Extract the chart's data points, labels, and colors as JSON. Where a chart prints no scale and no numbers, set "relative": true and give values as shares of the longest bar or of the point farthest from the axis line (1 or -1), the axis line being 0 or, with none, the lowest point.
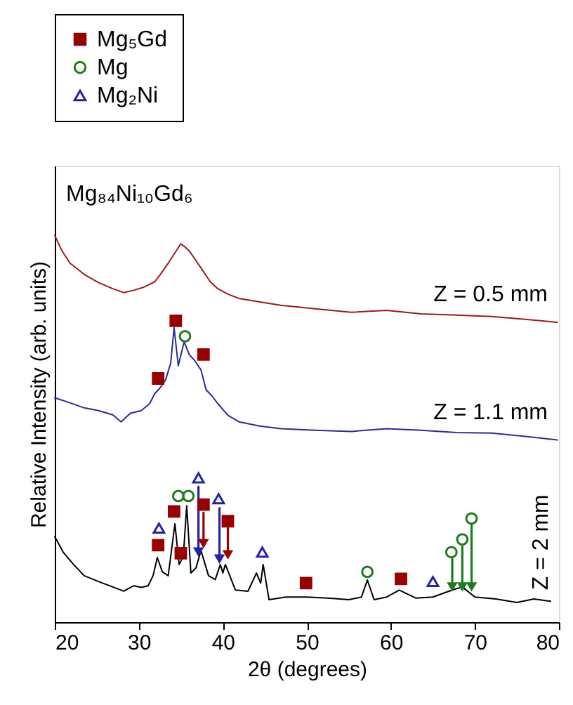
{
  "chart_data": {
    "type": "line",
    "relative": true,
    "xlabel": "2θ (degrees)",
    "ylabel": "Relative Intensity (arb. units)",
    "xlim": [
      20,
      80
    ],
    "xticks": [
      20,
      30,
      40,
      50,
      60,
      70,
      80
    ],
    "grid": false,
    "legend": "top left",
    "annotations": [
      "Mg₈₄Ni₁₀Gd₆"
    ],
    "series": [
      {
        "name": "Z = 0.5 mm",
        "color": "#9b1b1b",
        "x": [
          20,
          20.8,
          21.8,
          22.6,
          23.5,
          25.2,
          26.9,
          28.2,
          29.4,
          30.6,
          31.9,
          32.7,
          33.5,
          34.3,
          35,
          35.5,
          36,
          36.8,
          37.7,
          38.5,
          39.4,
          40.6,
          41.9,
          44.4,
          46.9,
          51,
          55.3,
          59.5,
          63.6,
          67.8,
          72,
          76,
          79.8
        ],
        "values": [
          1.0,
          0.962,
          0.928,
          0.915,
          0.899,
          0.878,
          0.862,
          0.852,
          0.858,
          0.866,
          0.88,
          0.903,
          0.928,
          0.955,
          0.978,
          0.97,
          0.96,
          0.935,
          0.906,
          0.88,
          0.862,
          0.848,
          0.837,
          0.828,
          0.819,
          0.81,
          0.801,
          0.806,
          0.797,
          0.794,
          0.79,
          0.783,
          0.775
        ]
      },
      {
        "name": "Z = 1.1 mm",
        "color": "#2b2b9b",
        "x": [
          20,
          21.8,
          23.5,
          25.2,
          26.9,
          27.9,
          29,
          30.3,
          31.3,
          31.9,
          32.5,
          33.2,
          33.8,
          34.2,
          34.7,
          35.4,
          36,
          36.7,
          37.4,
          38,
          38.7,
          39.4,
          40.6,
          41.9,
          44.4,
          46.9,
          51,
          55.3,
          59.5,
          63.6,
          67.8,
          72,
          76,
          79.8
        ],
        "values": [
          0.58,
          0.567,
          0.554,
          0.547,
          0.536,
          0.518,
          0.54,
          0.547,
          0.565,
          0.591,
          0.605,
          0.627,
          0.67,
          0.761,
          0.663,
          0.725,
          0.692,
          0.675,
          0.652,
          0.601,
          0.585,
          0.565,
          0.535,
          0.518,
          0.507,
          0.5,
          0.496,
          0.493,
          0.5,
          0.496,
          0.49,
          0.489,
          0.48,
          0.471
        ]
      },
      {
        "name": "Z = 2 mm",
        "color": "#000000",
        "x": [
          20,
          21,
          22.2,
          23.5,
          25.2,
          26.9,
          28.2,
          29.4,
          30.3,
          31.1,
          31.7,
          32.2,
          32.8,
          33.5,
          34.3,
          34.8,
          35.3,
          35.7,
          36.2,
          36.8,
          37.4,
          38.3,
          39.1,
          39.7,
          40,
          40.3,
          41.5,
          43,
          44,
          44.5,
          44.8,
          45.5,
          47.5,
          50,
          52.5,
          55,
          56.5,
          57.2,
          58,
          59.5,
          61,
          63,
          65,
          67.3,
          68.5,
          70,
          72.5,
          75,
          77,
          79
        ],
        "values": [
          0.221,
          0.181,
          0.15,
          0.12,
          0.105,
          0.091,
          0.08,
          0.094,
          0.09,
          0.094,
          0.12,
          0.167,
          0.13,
          0.12,
          0.254,
          0.149,
          0.17,
          0.301,
          0.127,
          0.14,
          0.185,
          0.12,
          0.11,
          0.149,
          0.127,
          0.149,
          0.083,
          0.08,
          0.127,
          0.101,
          0.149,
          0.058,
          0.065,
          0.065,
          0.062,
          0.058,
          0.065,
          0.109,
          0.058,
          0.065,
          0.083,
          0.062,
          0.065,
          0.083,
          0.091,
          0.065,
          0.06,
          0.051,
          0.06,
          0.054
        ]
      },
      {
        "name": "Mg₅Gd",
        "type": "scatter",
        "marker": "square",
        "color": "#990000",
        "x": [
          32.3,
          34.4,
          37.7,
          32.3,
          34.2,
          35.0,
          37.7,
          40.6,
          49.9,
          61.2
        ],
        "values": [
          0.63,
          0.779,
          0.692,
          0.199,
          0.286,
          0.178,
          0.304,
          0.261,
          0.101,
          0.112
        ]
      },
      {
        "name": "Mg",
        "type": "scatter",
        "marker": "circle",
        "color": "#1e7b1e",
        "x": [
          35.5,
          34.7,
          35.9,
          57.2,
          67.2,
          68.5,
          69.6
        ],
        "values": [
          0.739,
          0.326,
          0.326,
          0.13,
          0.181,
          0.214,
          0.268
        ]
      },
      {
        "name": "Mg₂Ni",
        "type": "scatter",
        "marker": "triangle",
        "color": "#2222aa",
        "x": [
          32.4,
          37.1,
          39.5,
          44.7,
          65.0
        ],
        "values": [
          0.243,
          0.373,
          0.319,
          0.181,
          0.105
        ]
      },
      {
        "marker": "triangle",
        "color": "#2222aa",
        "x": [
          37.1,
          37.1,
          null,
          39.6,
          39.6
        ],
        "values": [
          0.35,
          0.181,
          null,
          0.295,
          0.163
        ]
      },
      {
        "marker": "triangle",
        "color": "#990000",
        "x": [
          37.7,
          37.7,
          null,
          40.6,
          40.6
        ],
        "values": [
          0.283,
          0.203,
          null,
          0.243,
          0.174
        ]
      },
      {
        "marker": "triangle",
        "color": "#1e7b1e",
        "x": [
          67.3,
          67.3,
          null,
          68.5,
          68.5,
          null,
          69.6,
          69.6
        ],
        "values": [
          0.163,
          0.091,
          null,
          0.196,
          0.091,
          null,
          0.25,
          0.091
        ]
      }
    ]
  }
}
